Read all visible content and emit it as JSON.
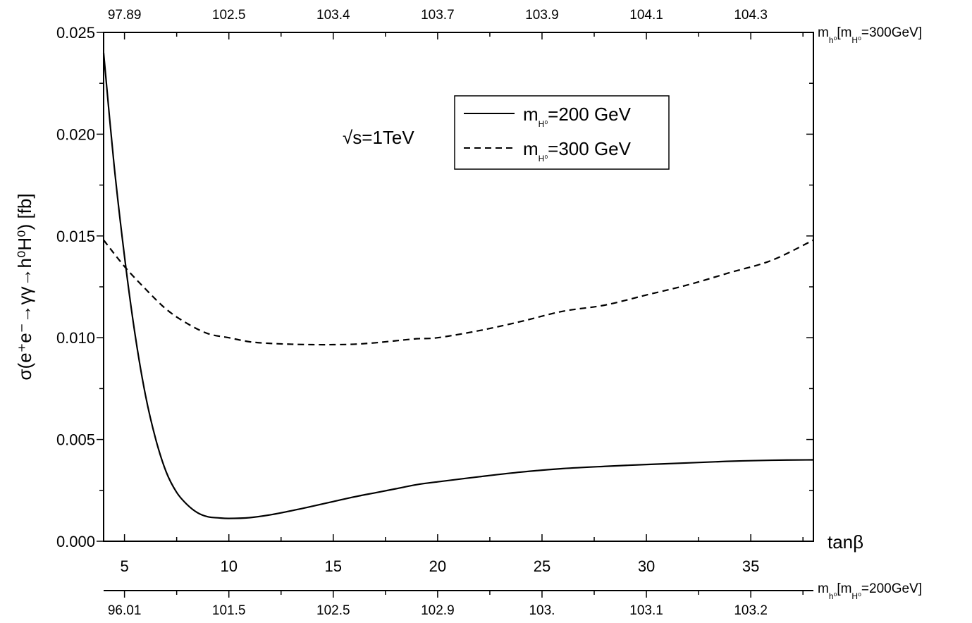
{
  "chart_data": {
    "type": "line",
    "xlabel": "tanβ",
    "ylabel": "σ(e⁺e⁻→γγ→h⁰H⁰) [fb]",
    "xlim": [
      4,
      38
    ],
    "ylim": [
      0,
      0.025
    ],
    "x_ticks": [
      "5",
      "10",
      "15",
      "20",
      "25",
      "30",
      "35"
    ],
    "y_ticks": [
      "0.000",
      "0.005",
      "0.010",
      "0.015",
      "0.020",
      "0.025"
    ],
    "annotation": "√s=1TeV",
    "top_axis": {
      "label_main": "m",
      "label_sub": "h⁰",
      "label_bracket": "[m",
      "label_sub2": "H⁰",
      "label_tail": "=300GeV]",
      "tick_labels": [
        "97.89",
        "102.5",
        "103.4",
        "103.7",
        "103.9",
        "104.1",
        "104.3"
      ]
    },
    "bottom_axis": {
      "label_main": "m",
      "label_sub": "h⁰",
      "label_bracket": "[m",
      "label_sub2": "H⁰",
      "label_tail": "=200GeV]",
      "tick_labels": [
        "96.01",
        "101.5",
        "102.5",
        "102.9",
        "103.",
        "103.1",
        "103.2"
      ]
    },
    "legend_position": "top-right",
    "series": [
      {
        "name": "m_H⁰=200 GeV",
        "legend_main": "m",
        "legend_sub": "H⁰",
        "legend_tail": "=200 GeV",
        "style": "solid",
        "x": [
          4,
          4.5,
          5,
          5.5,
          6,
          6.5,
          7,
          7.5,
          8,
          8.5,
          9,
          9.5,
          10,
          11,
          12,
          13,
          14,
          15,
          16,
          17,
          18,
          19,
          20,
          22,
          24,
          26,
          28,
          30,
          32,
          34,
          36,
          38
        ],
        "y": [
          0.024,
          0.0185,
          0.014,
          0.0102,
          0.0072,
          0.005,
          0.0034,
          0.0024,
          0.0018,
          0.0014,
          0.0012,
          0.00115,
          0.00112,
          0.00116,
          0.0013,
          0.0015,
          0.00172,
          0.00195,
          0.00218,
          0.00238,
          0.00258,
          0.00278,
          0.00292,
          0.00317,
          0.0034,
          0.00357,
          0.00368,
          0.00377,
          0.00385,
          0.00393,
          0.00398,
          0.004
        ]
      },
      {
        "name": "m_H⁰=300 GeV",
        "legend_main": "m",
        "legend_sub": "H⁰",
        "legend_tail": "=300 GeV",
        "style": "dashed",
        "x": [
          4,
          5,
          6,
          7,
          8,
          9,
          10,
          11,
          12,
          13,
          14,
          15,
          16,
          17,
          18,
          19,
          20,
          22,
          24,
          26,
          28,
          30,
          32,
          34,
          36,
          38
        ],
        "y": [
          0.0148,
          0.0135,
          0.0124,
          0.0114,
          0.0107,
          0.0102,
          0.01,
          0.0098,
          0.00972,
          0.00968,
          0.00966,
          0.00966,
          0.00968,
          0.00975,
          0.00985,
          0.00995,
          0.01,
          0.01035,
          0.0108,
          0.0113,
          0.0116,
          0.0121,
          0.0126,
          0.0132,
          0.0138,
          0.0148
        ]
      }
    ]
  }
}
